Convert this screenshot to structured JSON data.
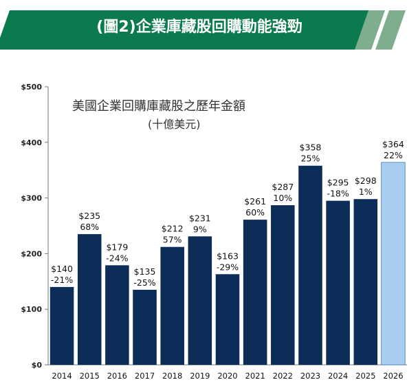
{
  "header": {
    "title": "(圖2)企業庫藏股回購動能強勁"
  },
  "colors": {
    "banner": "#0c7a4f",
    "banner_accent": "#7fae8f",
    "bar_actual": "#0b2d57",
    "bar_forecast": "#a9cdee"
  },
  "chart_data": {
    "type": "bar",
    "title": "美國企業回購庫藏股之歷年金額",
    "subtitle": "(十億美元)",
    "categories": [
      "2014",
      "2015",
      "2016",
      "2017",
      "2018",
      "2019",
      "2020",
      "2021",
      "2022",
      "2023",
      "2024",
      "2025",
      "2026"
    ],
    "values": [
      140,
      235,
      179,
      135,
      212,
      231,
      163,
      261,
      287,
      358,
      295,
      298,
      364
    ],
    "value_labels": [
      "$140",
      "$235",
      "$179",
      "$135",
      "$212",
      "$231",
      "$163",
      "$261",
      "$287",
      "$358",
      "$295",
      "$298",
      "$364"
    ],
    "growth_labels": [
      "-21%",
      "68%",
      "-24%",
      "-25%",
      "57%",
      "9%",
      "-29%",
      "60%",
      "10%",
      "25%",
      "-18%",
      "1%",
      "22%"
    ],
    "forecast_categories": [
      "2026"
    ],
    "ylim": [
      0,
      500
    ],
    "yticks": [
      0,
      100,
      200,
      300,
      400,
      500
    ],
    "ytick_labels": [
      "$0",
      "$100",
      "$200",
      "$300",
      "$400",
      "$500"
    ],
    "xlabel": "",
    "ylabel": "",
    "grid": false
  }
}
